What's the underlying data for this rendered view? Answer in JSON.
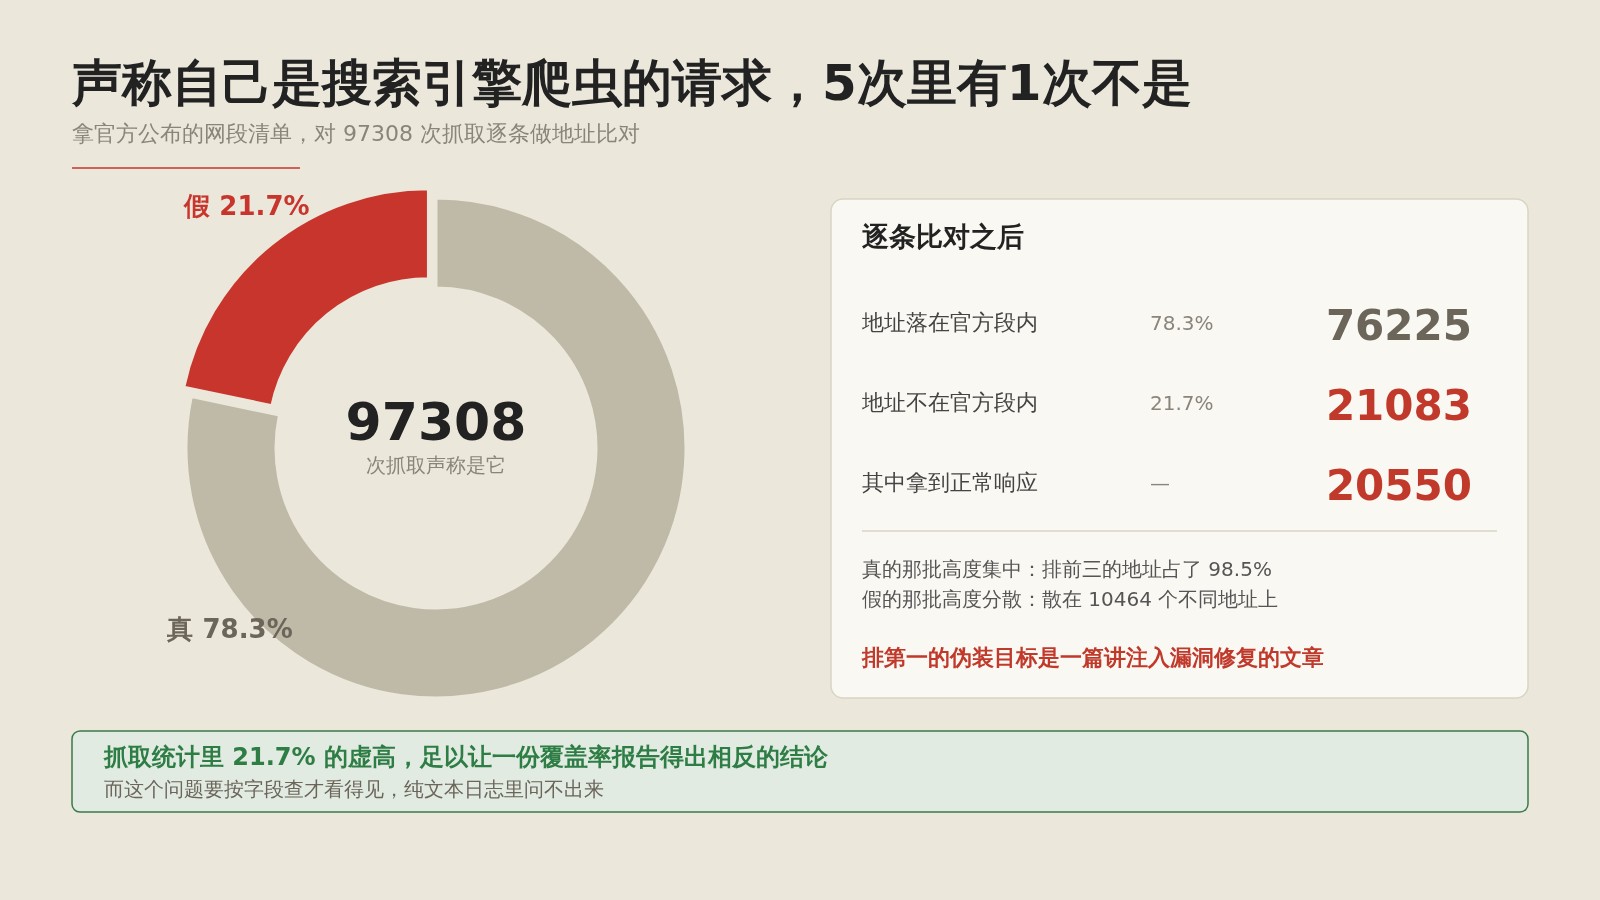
{
  "chart_data": [
    {
      "type": "donut",
      "title": "声称自己是搜索引擎爬虫的请求，5次里有1次不是",
      "subtitle": "拿官方公布的网段清单，对 97308 次抓取逐条做地址比对",
      "categories": [
        "真",
        "假"
      ],
      "values": [
        78.3,
        21.7
      ],
      "colors": [
        "#bfbaa8",
        "#c8352d"
      ],
      "value_labels": [
        "78.3%",
        "21.7%"
      ],
      "annotations": [
        "97308",
        "次抓取声称是它",
        "抓取统计里 21.7% 的虚高，足以让一份覆盖率报告得出相反的结论",
        "而这个问题要按字段查才看得见，纯文本日志里问不出来"
      ]
    },
    {
      "type": "other",
      "title": "逐条比对之后",
      "annotations": [
        "地址落在官方段内",
        "78.3%",
        "76225",
        "地址不在官方段内",
        "21.7%",
        "21083",
        "其中拿到正常响应",
        "—",
        "20550",
        "真的那批高度集中：排前三的地址占了 98.5%",
        "假的那批高度分散：散在 10464 个不同地址上",
        "排第一的伪装目标是一篇讲注入漏洞修复的文章"
      ]
    }
  ]
}
